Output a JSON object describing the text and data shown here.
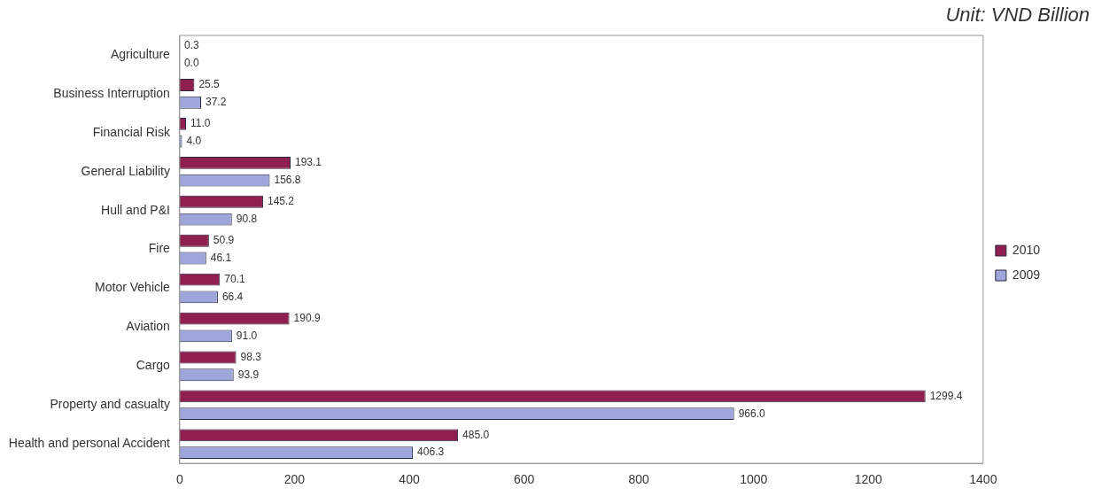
{
  "chart_data": {
    "type": "bar",
    "orientation": "horizontal",
    "annotations": [
      "Unit: VND Billion"
    ],
    "categories": [
      "Agriculture",
      "Business Interruption",
      "Financial Risk",
      "General Liability",
      "Hull and P&I",
      "Fire",
      "Motor Vehicle",
      "Aviation",
      "Cargo",
      "Property and casualty",
      "Health and personal Accident"
    ],
    "series": [
      {
        "name": "2010",
        "color": "#8e1f4f",
        "values": [
          0.3,
          25.5,
          11.0,
          193.1,
          145.2,
          50.9,
          70.1,
          190.9,
          98.3,
          1299.4,
          485.0
        ],
        "value_labels": [
          "0.3",
          "25.5",
          "11.0",
          "193.1",
          "145.2",
          "50.9",
          "70.1",
          "190.9",
          "98.3",
          "1299.4",
          "485.0"
        ]
      },
      {
        "name": "2009",
        "color": "#9fa6dc",
        "values": [
          0.0,
          37.2,
          4.0,
          156.8,
          90.8,
          46.1,
          66.4,
          91.0,
          93.9,
          966.0,
          406.3
        ],
        "value_labels": [
          "0.0",
          "37.2",
          "4.0",
          "156.8",
          "90.8",
          "46.1",
          "66.4",
          "91.0",
          "93.9",
          "966.0",
          "406.3"
        ]
      }
    ],
    "xlim": [
      0,
      1400
    ],
    "xticks": [
      0,
      200,
      400,
      600,
      800,
      1000,
      1200,
      1400
    ],
    "legend": "right"
  }
}
